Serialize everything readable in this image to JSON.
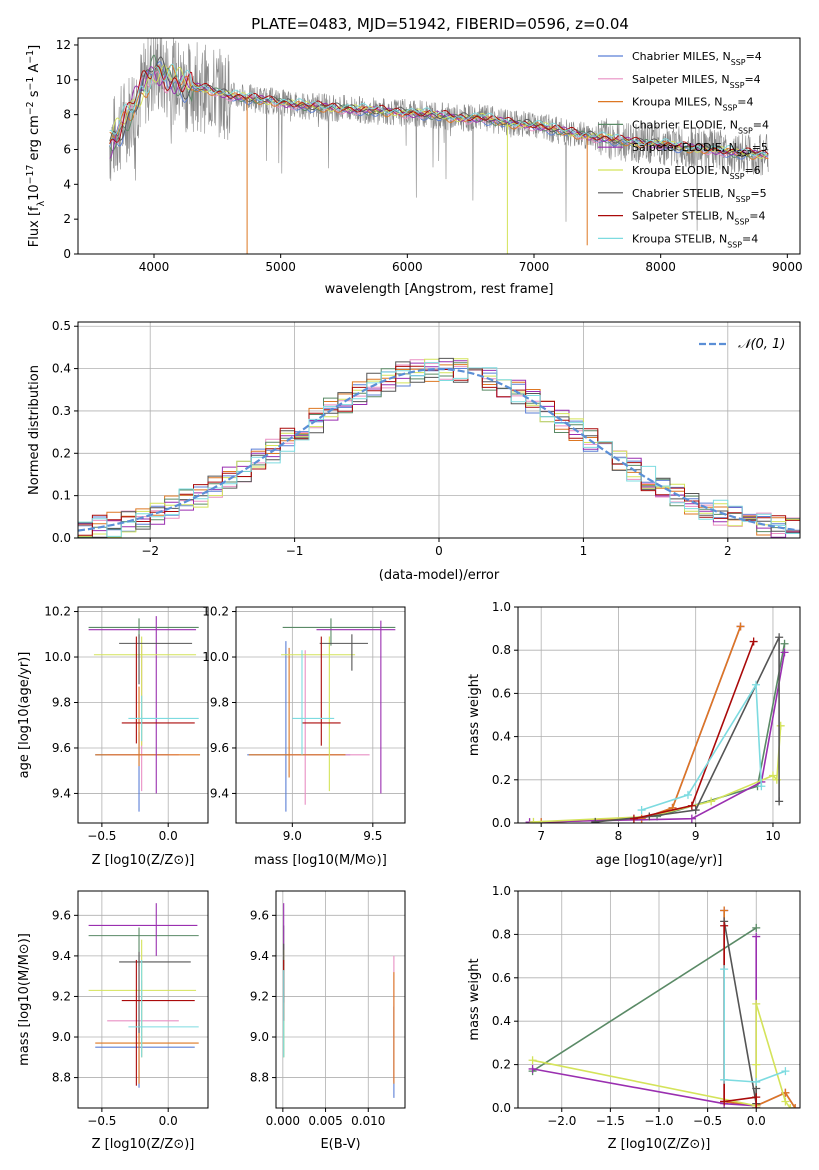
{
  "figure": {
    "title": "PLATE=0483, MJD=51942, FIBERID=0596, z=0.04"
  },
  "colors": {
    "Chabrier MILES": "#5b7fd6",
    "Salpeter MILES": "#e98fc4",
    "Kroupa MILES": "#dd7722",
    "Chabrier ELODIE": "#5a8a66",
    "Salpeter ELODIE": "#9a2fb0",
    "Kroupa ELODIE": "#d4e35a",
    "Chabrier STELIB": "#555555",
    "Salpeter STELIB": "#aa0a0a",
    "Kroupa STELIB": "#7ddbe0",
    "data": "#888888",
    "normal": "#5b8fd6"
  },
  "chart_data": [
    {
      "id": "spectrum",
      "type": "line",
      "title": "PLATE=0483, MJD=51942, FIBERID=0596, z=0.04",
      "xlabel": "wavelength [Angstrom, rest frame]",
      "ylabel": "Flux [f_λ10^-17 erg cm^-2 s^-1 A^-1]",
      "xlim": [
        3400,
        9100
      ],
      "ylim": [
        0,
        12.4
      ],
      "xticks": [
        4000,
        5000,
        6000,
        7000,
        8000,
        9000
      ],
      "yticks": [
        0,
        2,
        4,
        6,
        8,
        10,
        12
      ],
      "legend_position": "top-right",
      "legend": [
        {
          "name": "Chabrier MILES",
          "nssp": "4"
        },
        {
          "name": "Salpeter MILES",
          "nssp": "4"
        },
        {
          "name": "Kroupa MILES",
          "nssp": "4"
        },
        {
          "name": "Chabrier ELODIE",
          "nssp": "4"
        },
        {
          "name": "Salpeter ELODIE",
          "nssp": "5"
        },
        {
          "name": "Kroupa ELODIE",
          "nssp": "6"
        },
        {
          "name": "Chabrier STELIB",
          "nssp": "5"
        },
        {
          "name": "Salpeter STELIB",
          "nssp": "4"
        },
        {
          "name": "Kroupa STELIB",
          "nssp": "4"
        }
      ],
      "continuum": {
        "x": [
          3650,
          3700,
          3800,
          3900,
          4000,
          4100,
          4200,
          4300,
          4400,
          4500,
          4600,
          4700,
          4800,
          5000,
          5200,
          5400,
          5600,
          5800,
          6000,
          6200,
          6400,
          6600,
          6800,
          7000,
          7200,
          7400,
          7600,
          7800,
          8000,
          8200,
          8400,
          8600,
          8800
        ],
        "y": [
          6.3,
          6.8,
          8.0,
          9.4,
          10.6,
          10.2,
          9.8,
          9.6,
          9.5,
          9.3,
          9.1,
          9.0,
          8.9,
          8.7,
          8.5,
          8.4,
          8.3,
          8.2,
          8.1,
          8.0,
          7.8,
          7.8,
          7.5,
          7.4,
          7.1,
          6.8,
          6.6,
          6.4,
          6.3,
          6.1,
          6.0,
          5.8,
          5.7
        ]
      },
      "dips": [
        {
          "x": 4735,
          "y": 0.0,
          "series": "Kroupa MILES"
        },
        {
          "x": 6790,
          "y": 0.0,
          "series": "Kroupa ELODIE"
        },
        {
          "x": 7420,
          "y": 0.5,
          "series": "Kroupa MILES"
        }
      ]
    },
    {
      "id": "residuals",
      "type": "histogram",
      "xlabel": "(data-model)/error",
      "ylabel": "Normed distribution",
      "xlim": [
        -2.5,
        2.5
      ],
      "ylim": [
        0,
        0.51
      ],
      "xticks": [
        -2,
        -1,
        0,
        1,
        2
      ],
      "yticks": [
        0.0,
        0.1,
        0.2,
        0.3,
        0.4,
        0.5
      ],
      "bin_width": 0.1,
      "legend_position": "top-right",
      "reference_label": "N(0,1)"
    },
    {
      "id": "age-vs-Z",
      "type": "errorbar",
      "xlabel": "Z [log10(Z/Z⊙)]",
      "ylabel": "age [log10(age/yr)]",
      "xlim": [
        -0.68,
        0.3
      ],
      "ylim": [
        9.27,
        10.22
      ],
      "xticks": [
        -0.5,
        0.0
      ],
      "yticks": [
        9.4,
        9.6,
        9.8,
        10.0,
        10.2
      ],
      "points": [
        {
          "series": "Chabrier MILES",
          "x": -0.22,
          "y": 9.57,
          "xerr": [
            0.33,
            0.22
          ],
          "yerr": [
            0.25,
            0.1
          ]
        },
        {
          "series": "Salpeter MILES",
          "x": -0.2,
          "y": 9.57,
          "xerr": [
            0.26,
            0.28
          ],
          "yerr": [
            0.16,
            0.48
          ]
        },
        {
          "series": "Kroupa MILES",
          "x": -0.22,
          "y": 9.57,
          "xerr": [
            0.33,
            0.46
          ],
          "yerr": [
            0.05,
            0.3
          ]
        },
        {
          "series": "Chabrier ELODIE",
          "x": -0.22,
          "y": 10.13,
          "xerr": [
            0.38,
            0.45
          ],
          "yerr": [
            0.05,
            0.04
          ]
        },
        {
          "series": "Salpeter ELODIE",
          "x": -0.09,
          "y": 10.12,
          "xerr": [
            0.51,
            0.3
          ],
          "yerr": [
            0.72,
            0.06
          ]
        },
        {
          "series": "Kroupa ELODIE",
          "x": -0.2,
          "y": 10.01,
          "xerr": [
            0.36,
            0.41
          ],
          "yerr": [
            0.4,
            0.08
          ]
        },
        {
          "series": "Chabrier STELIB",
          "x": -0.22,
          "y": 10.06,
          "xerr": [
            0.15,
            0.4
          ],
          "yerr": [
            0.18,
            0.04
          ]
        },
        {
          "series": "Salpeter STELIB",
          "x": -0.24,
          "y": 9.71,
          "xerr": [
            0.11,
            0.44
          ],
          "yerr": [
            0.09,
            0.38
          ]
        },
        {
          "series": "Kroupa STELIB",
          "x": -0.2,
          "y": 9.73,
          "xerr": [
            0.1,
            0.43
          ],
          "yerr": [
            0.1,
            0.1
          ]
        }
      ]
    },
    {
      "id": "age-vs-mass",
      "type": "errorbar",
      "xlabel": "mass [log10(M/M⊙)]",
      "ylabel": "",
      "xlim": [
        8.65,
        9.7
      ],
      "ylim": [
        9.27,
        10.22
      ],
      "xticks": [
        9.0,
        9.5
      ],
      "yticks": [
        9.4,
        9.6,
        9.8,
        10.0,
        10.2
      ],
      "points": [
        {
          "series": "Chabrier MILES",
          "x": 8.96,
          "y": 9.57,
          "xerr": [
            0.24,
            0.4
          ],
          "yerr": [
            0.25,
            0.5
          ]
        },
        {
          "series": "Salpeter MILES",
          "x": 9.08,
          "y": 9.57,
          "xerr": [
            0.1,
            0.4
          ],
          "yerr": [
            0.22,
            0.46
          ]
        },
        {
          "series": "Kroupa MILES",
          "x": 8.98,
          "y": 9.57,
          "xerr": [
            0.25,
            0.35
          ],
          "yerr": [
            0.1,
            0.47
          ]
        },
        {
          "series": "Chabrier ELODIE",
          "x": 9.24,
          "y": 10.13,
          "xerr": [
            0.3,
            0.4
          ],
          "yerr": [
            0.08,
            0.04
          ]
        },
        {
          "series": "Salpeter ELODIE",
          "x": 9.55,
          "y": 10.12,
          "xerr": [
            0.4,
            0.09
          ],
          "yerr": [
            0.72,
            0.04
          ]
        },
        {
          "series": "Kroupa ELODIE",
          "x": 9.23,
          "y": 10.01,
          "xerr": [
            0.3,
            0.16
          ],
          "yerr": [
            0.6,
            0.08
          ]
        },
        {
          "series": "Chabrier STELIB",
          "x": 9.37,
          "y": 10.06,
          "xerr": [
            0.2,
            0.1
          ],
          "yerr": [
            0.12,
            0.04
          ]
        },
        {
          "series": "Salpeter STELIB",
          "x": 9.18,
          "y": 9.71,
          "xerr": [
            0.12,
            0.12
          ],
          "yerr": [
            0.1,
            0.38
          ]
        },
        {
          "series": "Kroupa STELIB",
          "x": 9.06,
          "y": 9.73,
          "xerr": [
            0.06,
            0.2
          ],
          "yerr": [
            0.16,
            0.3
          ]
        }
      ]
    },
    {
      "id": "massweight-vs-age",
      "type": "line",
      "xlabel": "age [log10(age/yr)]",
      "ylabel": "mass weight",
      "xlim": [
        6.7,
        10.35
      ],
      "ylim": [
        0,
        1
      ],
      "xticks": [
        7,
        8,
        9,
        10
      ],
      "yticks": [
        0.0,
        0.2,
        0.4,
        0.6,
        0.8,
        1.0
      ],
      "series": [
        {
          "name": "Chabrier MILES",
          "x": [
            7.0,
            8.3,
            8.7,
            9.58
          ],
          "y": [
            0.004,
            0.02,
            0.07,
            0.91
          ]
        },
        {
          "name": "Salpeter MILES",
          "x": [
            7.0,
            8.3,
            8.7,
            9.58
          ],
          "y": [
            0.004,
            0.02,
            0.07,
            0.91
          ]
        },
        {
          "name": "Kroupa MILES",
          "x": [
            7.0,
            8.3,
            8.7,
            9.58
          ],
          "y": [
            0.004,
            0.02,
            0.07,
            0.91
          ]
        },
        {
          "name": "Chabrier ELODIE",
          "x": [
            8.5,
            9.8,
            10.15
          ],
          "y": [
            0.03,
            0.17,
            0.83
          ]
        },
        {
          "name": "Salpeter ELODIE",
          "x": [
            6.85,
            8.95,
            9.85,
            10.15
          ],
          "y": [
            0.004,
            0.02,
            0.19,
            0.79
          ]
        },
        {
          "name": "Kroupa ELODIE",
          "x": [
            6.9,
            8.4,
            9.2,
            10.0,
            10.05,
            10.1
          ],
          "y": [
            0.005,
            0.03,
            0.1,
            0.22,
            0.2,
            0.45
          ]
        },
        {
          "name": "Chabrier STELIB",
          "x": [
            7.7,
            8.4,
            9.0,
            10.08,
            10.08
          ],
          "y": [
            0.005,
            0.03,
            0.06,
            0.86,
            0.1
          ]
        },
        {
          "name": "Salpeter STELIB",
          "x": [
            8.2,
            8.95,
            9.75
          ],
          "y": [
            0.02,
            0.08,
            0.84
          ]
        },
        {
          "name": "Kroupa STELIB",
          "x": [
            8.3,
            8.9,
            9.78,
            9.85
          ],
          "y": [
            0.06,
            0.13,
            0.64,
            0.17
          ]
        }
      ]
    },
    {
      "id": "mass-vs-Z",
      "type": "errorbar",
      "xlabel": "Z [log10(Z/Z⊙)]",
      "ylabel": "mass [log10(M/M⊙)]",
      "xlim": [
        -0.68,
        0.3
      ],
      "ylim": [
        8.65,
        9.72
      ],
      "xticks": [
        -0.5,
        0.0
      ],
      "yticks": [
        8.8,
        9.0,
        9.2,
        9.4,
        9.6
      ],
      "points": [
        {
          "series": "Chabrier MILES",
          "x": -0.22,
          "y": 8.95,
          "xerr": [
            0.33,
            0.42
          ],
          "yerr": [
            0.2,
            0.1
          ]
        },
        {
          "series": "Salpeter MILES",
          "x": -0.2,
          "y": 9.08,
          "xerr": [
            0.26,
            0.28
          ],
          "yerr": [
            0.18,
            0.2
          ]
        },
        {
          "series": "Kroupa MILES",
          "x": -0.22,
          "y": 8.97,
          "xerr": [
            0.33,
            0.45
          ],
          "yerr": [
            0.2,
            0.1
          ]
        },
        {
          "series": "Chabrier ELODIE",
          "x": -0.22,
          "y": 9.5,
          "xerr": [
            0.38,
            0.45
          ],
          "yerr": [
            0.15,
            0.04
          ]
        },
        {
          "series": "Salpeter ELODIE",
          "x": -0.09,
          "y": 9.55,
          "xerr": [
            0.51,
            0.31
          ],
          "yerr": [
            0.15,
            0.11
          ]
        },
        {
          "series": "Kroupa ELODIE",
          "x": -0.2,
          "y": 9.23,
          "xerr": [
            0.4,
            0.41
          ],
          "yerr": [
            0.33,
            0.25
          ]
        },
        {
          "series": "Chabrier STELIB",
          "x": -0.22,
          "y": 9.37,
          "xerr": [
            0.15,
            0.39
          ],
          "yerr": [
            0.35,
            0.05
          ]
        },
        {
          "series": "Salpeter STELIB",
          "x": -0.24,
          "y": 9.18,
          "xerr": [
            0.11,
            0.44
          ],
          "yerr": [
            0.42,
            0.2
          ]
        },
        {
          "series": "Kroupa STELIB",
          "x": -0.2,
          "y": 9.05,
          "xerr": [
            0.1,
            0.43
          ],
          "yerr": [
            0.15,
            0.33
          ]
        }
      ]
    },
    {
      "id": "mass-vs-EBV",
      "type": "errorbar",
      "xlabel": "E(B-V)",
      "ylabel": "",
      "xlim": [
        -0.0008,
        0.0143
      ],
      "ylim": [
        8.65,
        9.72
      ],
      "xticks": [
        0.0,
        0.005,
        0.01
      ],
      "xticklabels": [
        "0.000",
        "0.005",
        "0.010"
      ],
      "yticks": [
        8.8,
        9.0,
        9.2,
        9.4,
        9.6
      ],
      "points": [
        {
          "series": "Chabrier MILES",
          "x": 0.013,
          "y": 8.95,
          "xerr": [
            0,
            0
          ],
          "yerr": [
            0.25,
            0.2
          ]
        },
        {
          "series": "Salpeter MILES",
          "x": 0.013,
          "y": 9.08,
          "xerr": [
            0,
            0
          ],
          "yerr": [
            0.3,
            0.32
          ]
        },
        {
          "series": "Kroupa MILES",
          "x": 0.013,
          "y": 8.97,
          "xerr": [
            0,
            0
          ],
          "yerr": [
            0.2,
            0.35
          ]
        },
        {
          "series": "Chabrier ELODIE",
          "x": 0.0001,
          "y": 9.5,
          "xerr": [
            0,
            0
          ],
          "yerr": [
            0.6,
            0.05
          ]
        },
        {
          "series": "Salpeter ELODIE",
          "x": 0.0001,
          "y": 9.55,
          "xerr": [
            0,
            0
          ],
          "yerr": [
            0.2,
            0.11
          ]
        },
        {
          "series": "Kroupa ELODIE",
          "x": 0.0001,
          "y": 9.23,
          "xerr": [
            0,
            0
          ],
          "yerr": [
            0.33,
            0.2
          ]
        },
        {
          "series": "Chabrier STELIB",
          "x": 0.0001,
          "y": 9.37,
          "xerr": [
            0,
            0
          ],
          "yerr": [
            0.2,
            0.09
          ]
        },
        {
          "series": "Salpeter STELIB",
          "x": 0.0001,
          "y": 9.18,
          "xerr": [
            0,
            0
          ],
          "yerr": [
            0.1,
            0.2
          ]
        },
        {
          "series": "Kroupa STELIB",
          "x": 0.0001,
          "y": 9.05,
          "xerr": [
            0,
            0
          ],
          "yerr": [
            0.15,
            0.28
          ]
        }
      ]
    },
    {
      "id": "massweight-vs-Z",
      "type": "line",
      "xlabel": "Z [log10(Z/Z⊙)]",
      "ylabel": "mass weight",
      "xlim": [
        -2.45,
        0.45
      ],
      "ylim": [
        0,
        1
      ],
      "xticks": [
        -2.0,
        -1.5,
        -1.0,
        -0.5,
        0.0
      ],
      "yticks": [
        0.0,
        0.2,
        0.4,
        0.6,
        0.8,
        1.0
      ],
      "series": [
        {
          "name": "Chabrier MILES",
          "x": [
            -0.33,
            -0.33,
            0.0,
            0.3,
            0.4
          ],
          "y": [
            0.91,
            0.03,
            0.01,
            0.07,
            0.0
          ]
        },
        {
          "name": "Salpeter MILES",
          "x": [
            -0.33,
            -0.33,
            0.0,
            0.3,
            0.4
          ],
          "y": [
            0.91,
            0.03,
            0.01,
            0.07,
            0.0
          ]
        },
        {
          "name": "Kroupa MILES",
          "x": [
            -0.33,
            -0.33,
            0.0,
            0.3,
            0.4
          ],
          "y": [
            0.91,
            0.03,
            0.01,
            0.07,
            0.0
          ]
        },
        {
          "name": "Chabrier ELODIE",
          "x": [
            -2.3,
            0.0
          ],
          "y": [
            0.17,
            0.83
          ]
        },
        {
          "name": "Salpeter ELODIE",
          "x": [
            -2.3,
            -0.33,
            0.0,
            0.0,
            0.0
          ],
          "y": [
            0.18,
            0.02,
            0.01,
            0.79,
            0.0
          ]
        },
        {
          "name": "Kroupa ELODIE",
          "x": [
            -2.3,
            0.0,
            0.0,
            0.0,
            0.3,
            0.35
          ],
          "y": [
            0.22,
            0.01,
            0.2,
            0.48,
            0.03,
            0.0
          ]
        },
        {
          "name": "Chabrier STELIB",
          "x": [
            -0.33,
            0.0,
            0.0,
            0.0
          ],
          "y": [
            0.86,
            0.02,
            0.09,
            0.0
          ]
        },
        {
          "name": "Salpeter STELIB",
          "x": [
            -0.33,
            -0.33,
            0.0,
            0.0
          ],
          "y": [
            0.84,
            0.03,
            0.05,
            0.0
          ]
        },
        {
          "name": "Kroupa STELIB",
          "x": [
            -0.33,
            -0.33,
            0.0,
            0.3
          ],
          "y": [
            0.64,
            0.13,
            0.12,
            0.17
          ]
        }
      ]
    }
  ]
}
